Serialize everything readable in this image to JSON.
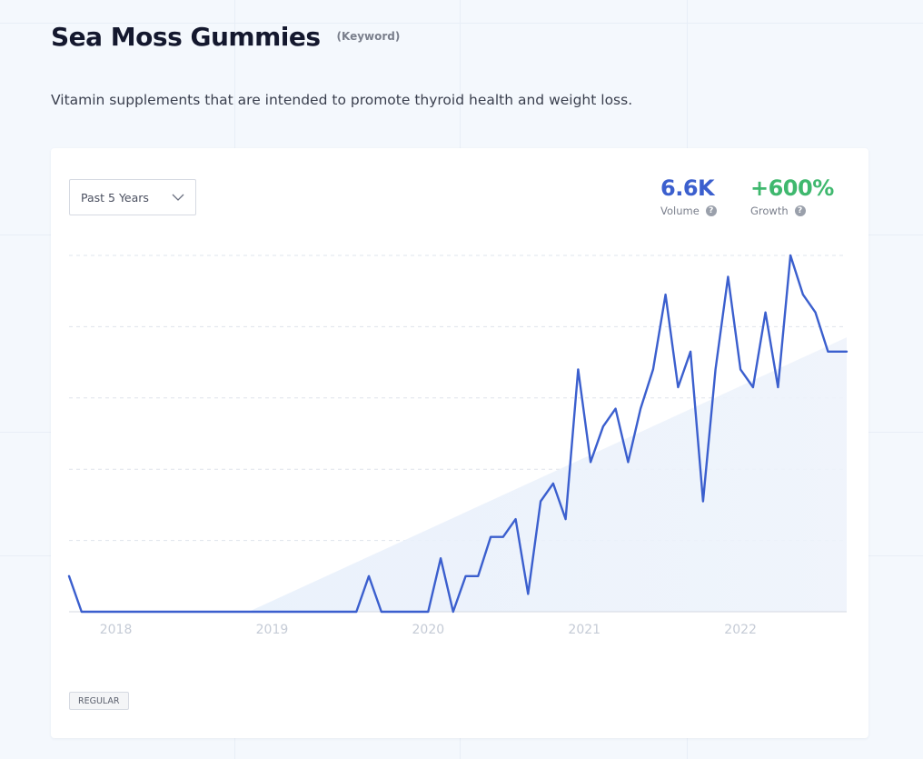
{
  "header": {
    "title": "Sea Moss Gummies",
    "tag": "(Keyword)",
    "description": "Vitamin supplements that are intended to promote thyroid health and weight loss."
  },
  "controls": {
    "range_label": "Past 5 Years",
    "chevron_icon": "chevron-down-icon"
  },
  "stats": {
    "volume": {
      "value": "6.6K",
      "label": "Volume",
      "color": "#3b5fce",
      "help_icon": "question-icon",
      "help_glyph": "?"
    },
    "growth": {
      "value": "+600%",
      "label": "Growth",
      "color": "#3fb86e",
      "help_icon": "question-icon",
      "help_glyph": "?"
    }
  },
  "badge": "REGULAR",
  "chart_data": {
    "type": "line",
    "title": "",
    "xlabel": "",
    "ylabel": "",
    "x_ticks": [
      "2018",
      "2019",
      "2020",
      "2021",
      "2022"
    ],
    "x_range": [
      2017.7,
      2022.68
    ],
    "ylim": [
      0,
      100
    ],
    "grid": true,
    "series": [
      {
        "color": "#3b5fce",
        "x": [
          2017.7,
          2017.78,
          2017.86,
          2018.0,
          2018.2,
          2018.4,
          2018.6,
          2018.8,
          2019.0,
          2019.2,
          2019.4,
          2019.54,
          2019.62,
          2019.7,
          2019.78,
          2019.86,
          2019.94,
          2020.0,
          2020.08,
          2020.16,
          2020.24,
          2020.32,
          2020.4,
          2020.48,
          2020.56,
          2020.64,
          2020.72,
          2020.8,
          2020.88,
          2020.96,
          2021.04,
          2021.12,
          2021.2,
          2021.28,
          2021.36,
          2021.44,
          2021.52,
          2021.6,
          2021.68,
          2021.76,
          2021.84,
          2021.92,
          2022.0,
          2022.08,
          2022.16,
          2022.24,
          2022.32,
          2022.4,
          2022.48,
          2022.56,
          2022.64,
          2022.68
        ],
        "values": [
          10,
          0,
          0,
          0,
          0,
          0,
          0,
          0,
          0,
          0,
          0,
          0,
          10,
          0,
          0,
          0,
          0,
          0,
          15,
          0,
          10,
          10,
          21,
          21,
          26,
          5,
          31,
          36,
          26,
          68,
          42,
          52,
          57,
          42,
          57,
          68,
          89,
          63,
          73,
          31,
          68,
          94,
          68,
          63,
          84,
          63,
          100,
          89,
          84,
          73,
          73,
          73
        ],
        "trend": [
          {
            "x": 2018.85,
            "y": 0
          },
          {
            "x": 2022.68,
            "y": 77
          }
        ]
      }
    ]
  }
}
